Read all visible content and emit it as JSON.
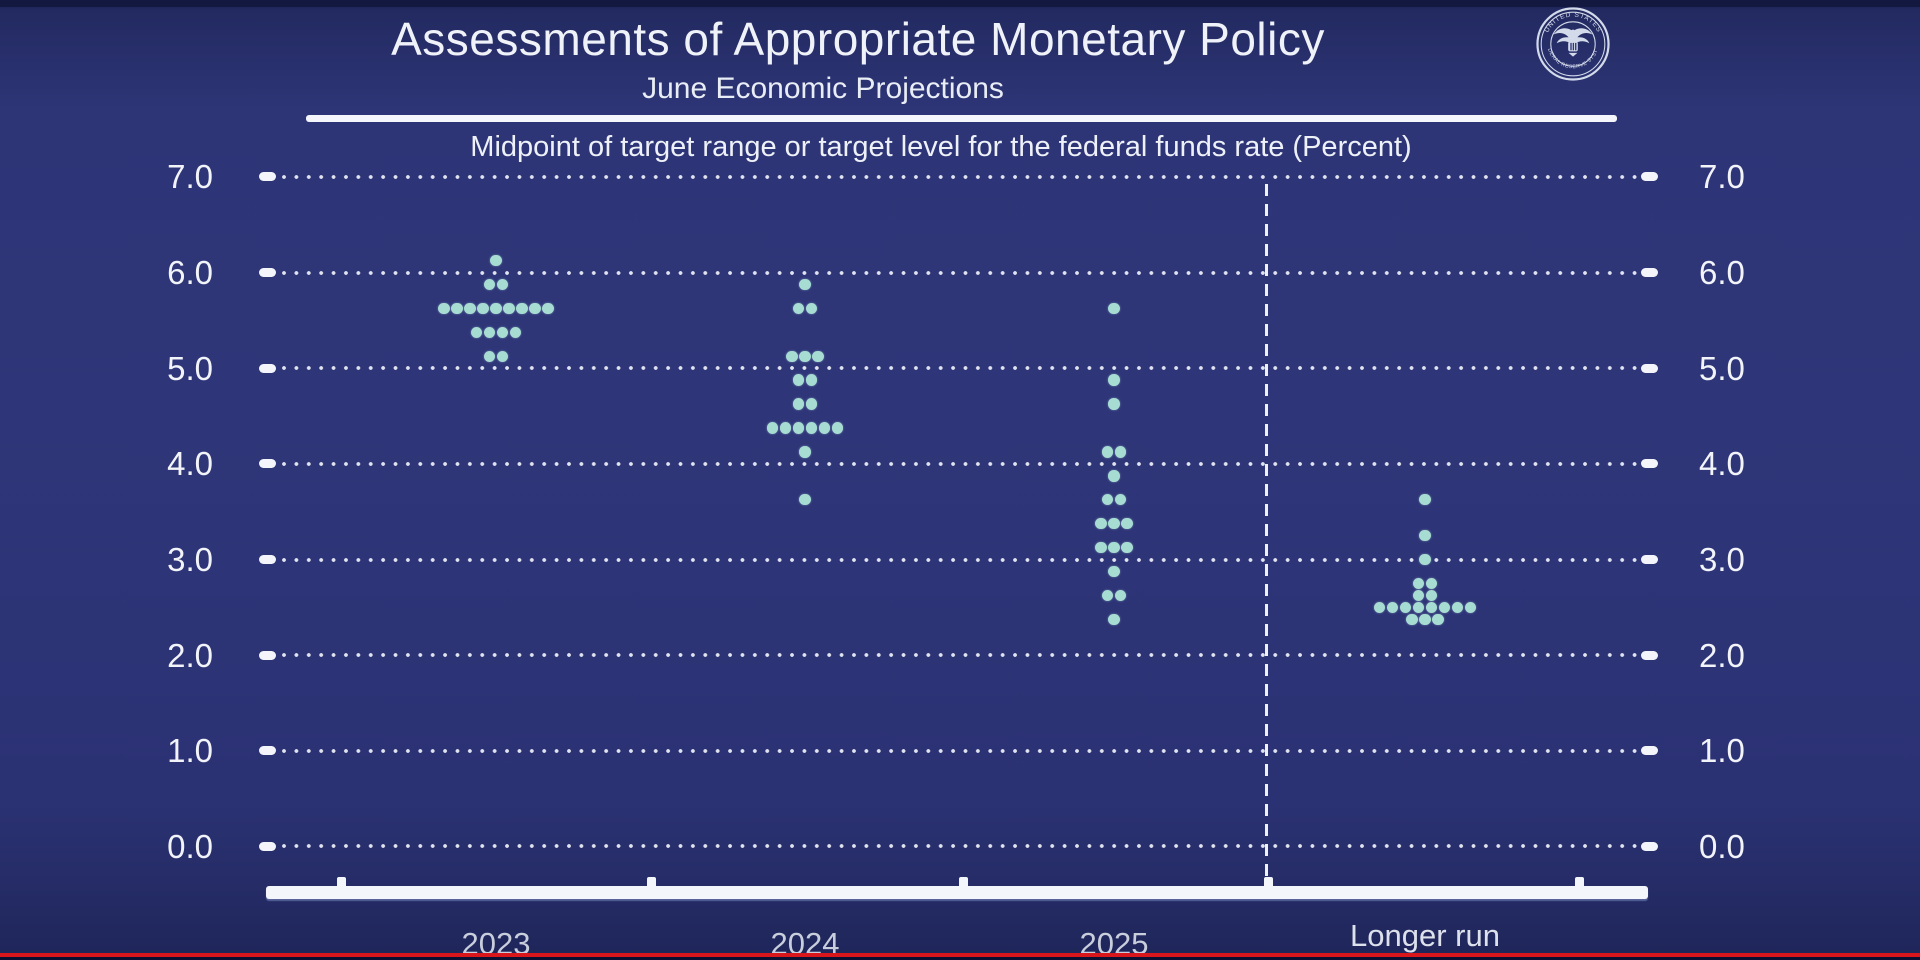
{
  "header": {
    "title": "Assessments of Appropriate Monetary Policy",
    "subtitle": "June Economic Projections",
    "axis_note": "Midpoint of target range or target level for the federal funds rate (Percent)"
  },
  "seal": {
    "top_text": "UNITED STATES",
    "bottom_text": "FEDERAL RESERVE SYSTEM"
  },
  "colors": {
    "background": "#2d3577",
    "dot": "#a6dcd2",
    "grid_dots": "#f0f3fa",
    "text": "#f2f4f9",
    "axis_bar": "#f3f6fb",
    "bottom_line_red": "#d8161c"
  },
  "chart_data": {
    "type": "scatter",
    "variant": "fomc-dot-plot",
    "title": "Assessments of Appropriate Monetary Policy",
    "subtitle": "June Economic Projections",
    "ylabel": "Midpoint of target range or target level for the federal funds rate (Percent)",
    "xlabel": "",
    "ylim": [
      0.0,
      7.0
    ],
    "grid": "dotted horizontal lines at each integer",
    "legend_position": "none",
    "y_ticks": [
      "7.0",
      "6.0",
      "5.0",
      "4.0",
      "3.0",
      "2.0",
      "1.0",
      "0.0"
    ],
    "categories": [
      "2023",
      "2024",
      "2025",
      "Longer run"
    ],
    "series": [
      {
        "name": "2023",
        "dots": [
          {
            "rate": 6.125,
            "count": 1
          },
          {
            "rate": 5.875,
            "count": 2
          },
          {
            "rate": 5.625,
            "count": 9
          },
          {
            "rate": 5.375,
            "count": 4
          },
          {
            "rate": 5.125,
            "count": 2
          }
        ]
      },
      {
        "name": "2024",
        "dots": [
          {
            "rate": 5.875,
            "count": 1
          },
          {
            "rate": 5.625,
            "count": 2
          },
          {
            "rate": 5.125,
            "count": 3
          },
          {
            "rate": 4.875,
            "count": 2
          },
          {
            "rate": 4.625,
            "count": 2
          },
          {
            "rate": 4.375,
            "count": 6
          },
          {
            "rate": 4.125,
            "count": 1
          },
          {
            "rate": 3.625,
            "count": 1
          }
        ]
      },
      {
        "name": "2025",
        "dots": [
          {
            "rate": 5.625,
            "count": 1
          },
          {
            "rate": 4.875,
            "count": 1
          },
          {
            "rate": 4.625,
            "count": 1
          },
          {
            "rate": 4.125,
            "count": 2
          },
          {
            "rate": 3.875,
            "count": 1
          },
          {
            "rate": 3.625,
            "count": 2
          },
          {
            "rate": 3.375,
            "count": 3
          },
          {
            "rate": 3.125,
            "count": 3
          },
          {
            "rate": 2.875,
            "count": 1
          },
          {
            "rate": 2.625,
            "count": 2
          },
          {
            "rate": 2.375,
            "count": 1
          }
        ]
      },
      {
        "name": "Longer run",
        "dots": [
          {
            "rate": 3.625,
            "count": 1
          },
          {
            "rate": 3.25,
            "count": 1
          },
          {
            "rate": 3.0,
            "count": 1
          },
          {
            "rate": 2.75,
            "count": 2
          },
          {
            "rate": 2.625,
            "count": 2
          },
          {
            "rate": 2.5,
            "count": 8
          },
          {
            "rate": 2.375,
            "count": 3
          }
        ]
      }
    ]
  }
}
